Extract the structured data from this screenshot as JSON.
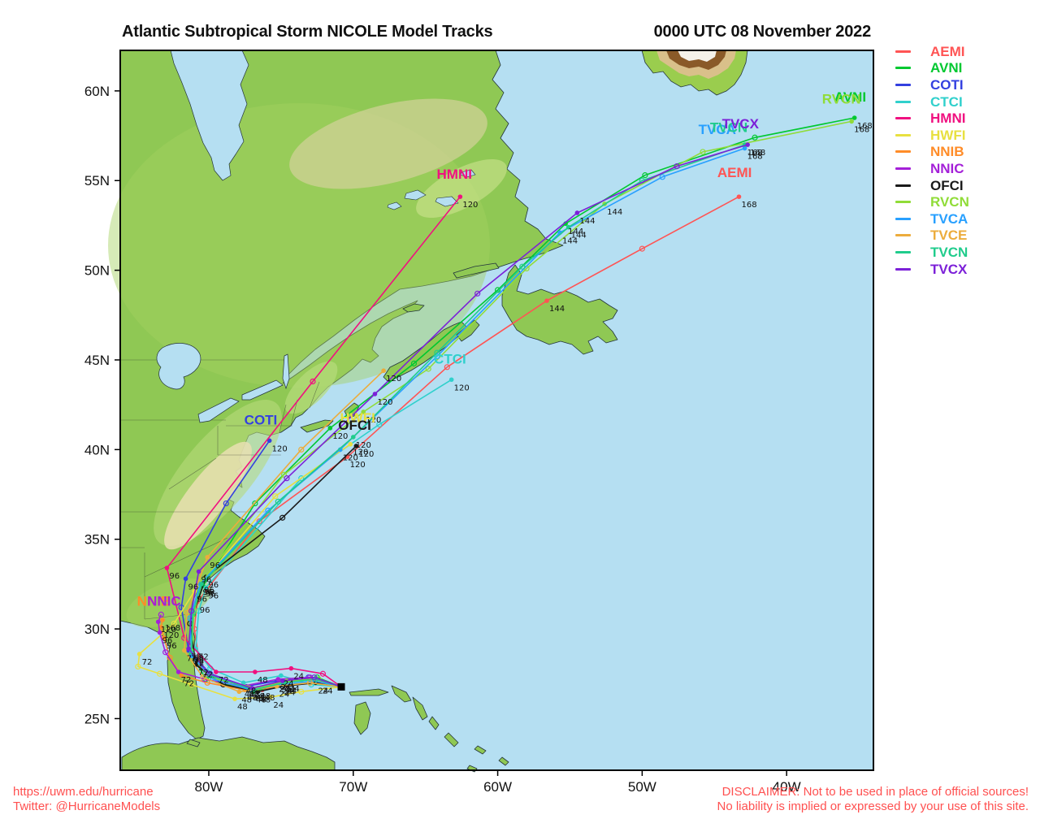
{
  "page": {
    "title_left": "Atlantic Subtropical Storm NICOLE Model Tracks",
    "title_right": "0000 UTC 08 November 2022"
  },
  "footer": {
    "url": "https://uwm.edu/hurricane",
    "twitter": "Twitter: @HurricaneModels",
    "disclaimer_line1": "DISCLAIMER: Not to be used in place of official sources!",
    "disclaimer_line2": "No liability is implied or expressed by your use of this site."
  },
  "legend": {
    "models": [
      {
        "name": "AEMI",
        "color": "#FF5454"
      },
      {
        "name": "AVNI",
        "color": "#00C830"
      },
      {
        "name": "COTI",
        "color": "#3340E0"
      },
      {
        "name": "CTCI",
        "color": "#30D0CC"
      },
      {
        "name": "HMNI",
        "color": "#F01080"
      },
      {
        "name": "HWFI",
        "color": "#E8E040"
      },
      {
        "name": "NNIB",
        "color": "#FF8C28"
      },
      {
        "name": "NNIC",
        "color": "#A420D8"
      },
      {
        "name": "OFCI",
        "color": "#1A1A1A"
      },
      {
        "name": "RVCN",
        "color": "#90DC38"
      },
      {
        "name": "TVCA",
        "color": "#28A0FF"
      },
      {
        "name": "TVCE",
        "color": "#ECAC3C"
      },
      {
        "name": "TVCN",
        "color": "#20CC8C"
      },
      {
        "name": "TVCX",
        "color": "#7C20D8"
      }
    ]
  },
  "chart_data": {
    "type": "map-tracks",
    "storm": "NICOLE",
    "title": "Atlantic Subtropical Storm NICOLE Model Tracks",
    "init_time": "0000 UTC 08 November 2022",
    "bounds": {
      "lon_min": -86.13,
      "lon_max": -33.99,
      "lat_min": 22.12,
      "lat_max": 62.26
    },
    "lon_ticks": [
      {
        "value": -80,
        "label": "80W"
      },
      {
        "value": -70,
        "label": "70W"
      },
      {
        "value": -60,
        "label": "60W"
      },
      {
        "value": -50,
        "label": "50W"
      },
      {
        "value": -40,
        "label": "40W"
      }
    ],
    "lat_ticks": [
      {
        "value": 25,
        "label": "25N"
      },
      {
        "value": 30,
        "label": "30N"
      },
      {
        "value": 35,
        "label": "35N"
      },
      {
        "value": 40,
        "label": "40N"
      },
      {
        "value": 45,
        "label": "45N"
      },
      {
        "value": 50,
        "label": "50N"
      },
      {
        "value": 55,
        "label": "55N"
      },
      {
        "value": 60,
        "label": "60N"
      }
    ],
    "start": {
      "lon": -70.83,
      "lat": 26.77
    },
    "tracks": [
      {
        "model": "AEMI",
        "color": "#FF5454",
        "end_label": {
          "lon": -43.6,
          "lat": 55.2
        },
        "points": [
          [
            -70.83,
            26.77,
            ""
          ],
          [
            -72.3,
            27.0,
            "24"
          ],
          [
            -74.6,
            26.9,
            ""
          ],
          [
            -76.3,
            26.6,
            "48"
          ],
          [
            -78.6,
            26.9,
            ""
          ],
          [
            -80.6,
            27.9,
            "72"
          ],
          [
            -81.0,
            30.0,
            ""
          ],
          [
            -80.8,
            31.5,
            "96"
          ],
          [
            -76.5,
            36.0,
            ""
          ],
          [
            -70.4,
            39.6,
            "120"
          ],
          [
            -63.5,
            44.6,
            ""
          ],
          [
            -56.6,
            48.3,
            "144"
          ],
          [
            -50.0,
            51.2,
            ""
          ],
          [
            -43.3,
            54.1,
            "168"
          ]
        ]
      },
      {
        "model": "AVNI",
        "color": "#00C830",
        "end_label": {
          "lon": -35.6,
          "lat": 59.4
        },
        "points": [
          [
            -70.83,
            26.77,
            ""
          ],
          [
            -72.5,
            27.3,
            ""
          ],
          [
            -74.8,
            27.0,
            "24"
          ],
          [
            -76.9,
            26.5,
            "48"
          ],
          [
            -80.2,
            27.2,
            ""
          ],
          [
            -81.2,
            28.6,
            "72"
          ],
          [
            -81.1,
            30.8,
            ""
          ],
          [
            -80.4,
            32.4,
            "96"
          ],
          [
            -76.8,
            37.0,
            ""
          ],
          [
            -71.6,
            41.2,
            "120"
          ],
          [
            -65.8,
            44.8,
            ""
          ],
          [
            -60.0,
            48.9,
            ""
          ],
          [
            -55.3,
            52.6,
            "144"
          ],
          [
            -49.8,
            55.3,
            ""
          ],
          [
            -42.2,
            57.4,
            ""
          ],
          [
            -35.3,
            58.5,
            "168"
          ]
        ]
      },
      {
        "model": "COTI",
        "color": "#3340E0",
        "end_label": {
          "lon": -76.4,
          "lat": 41.4
        },
        "points": [
          [
            -70.83,
            26.77,
            ""
          ],
          [
            -73.1,
            27.3,
            ""
          ],
          [
            -75.3,
            27.1,
            "24"
          ],
          [
            -77.4,
            26.8,
            "48"
          ],
          [
            -79.9,
            27.5,
            ""
          ],
          [
            -81.4,
            28.8,
            "72"
          ],
          [
            -81.9,
            31.2,
            ""
          ],
          [
            -81.6,
            32.8,
            "96"
          ],
          [
            -78.8,
            37.0,
            ""
          ],
          [
            -75.8,
            40.5,
            "120"
          ]
        ]
      },
      {
        "model": "CTCI",
        "color": "#30D0CC",
        "end_label": {
          "lon": -63.3,
          "lat": 44.8
        },
        "points": [
          [
            -70.83,
            26.77,
            ""
          ],
          [
            -72.9,
            26.9,
            ""
          ],
          [
            -75.0,
            27.4,
            "24"
          ],
          [
            -77.6,
            27.0,
            "48"
          ],
          [
            -79.9,
            27.8,
            ""
          ],
          [
            -80.9,
            28.9,
            "72"
          ],
          [
            -80.7,
            31.0,
            ""
          ],
          [
            -80.2,
            32.3,
            "96"
          ],
          [
            -73.6,
            38.4,
            ""
          ],
          [
            -68.2,
            41.4,
            ""
          ],
          [
            -63.2,
            43.9,
            "120"
          ]
        ]
      },
      {
        "model": "HMNI",
        "color": "#F01080",
        "end_label": {
          "lon": -63.0,
          "lat": 55.1
        },
        "points": [
          [
            -70.83,
            26.77,
            ""
          ],
          [
            -72.1,
            27.5,
            ""
          ],
          [
            -74.3,
            27.8,
            "24"
          ],
          [
            -76.8,
            27.6,
            "48"
          ],
          [
            -79.5,
            27.6,
            "72"
          ],
          [
            -81.7,
            29.5,
            ""
          ],
          [
            -82.9,
            33.4,
            "96"
          ],
          [
            -72.8,
            43.8,
            ""
          ],
          [
            -62.6,
            54.1,
            "120"
          ]
        ]
      },
      {
        "model": "HWFI",
        "color": "#E8E040",
        "end_label": {
          "lon": -69.7,
          "lat": 41.5
        },
        "points": [
          [
            -70.83,
            26.77,
            ""
          ],
          [
            -73.6,
            26.5,
            ""
          ],
          [
            -75.7,
            26.2,
            "24"
          ],
          [
            -78.2,
            26.1,
            "48"
          ],
          [
            -81.2,
            26.9,
            ""
          ],
          [
            -83.4,
            27.5,
            ""
          ],
          [
            -84.9,
            27.9,
            ""
          ],
          [
            -84.8,
            28.6,
            "72"
          ],
          [
            -82.4,
            30.3,
            ""
          ],
          [
            -81.0,
            32.1,
            "96"
          ],
          [
            -75.4,
            37.4,
            ""
          ],
          [
            -70.2,
            40.3,
            "120"
          ]
        ]
      },
      {
        "model": "NNIB",
        "color": "#FF8C28",
        "end_label": {
          "lon": -83.8,
          "lat": 31.3
        },
        "points": [
          [
            -70.83,
            26.77,
            ""
          ],
          [
            -72.9,
            27.2,
            ""
          ],
          [
            -75.1,
            27.0,
            "24"
          ],
          [
            -77.5,
            26.6,
            "48"
          ],
          [
            -80.1,
            27.0,
            ""
          ],
          [
            -81.9,
            27.4,
            "72"
          ],
          [
            -82.7,
            28.4,
            ""
          ],
          [
            -83.1,
            29.5,
            "96"
          ],
          [
            -83.3,
            30.1,
            "120"
          ],
          [
            -83.2,
            30.5,
            "168"
          ]
        ]
      },
      {
        "model": "NNIC",
        "color": "#A420D8",
        "end_label": {
          "lon": -83.1,
          "lat": 31.3
        },
        "points": [
          [
            -70.83,
            26.77,
            ""
          ],
          [
            -73.0,
            27.3,
            ""
          ],
          [
            -75.2,
            27.2,
            "24"
          ],
          [
            -77.7,
            26.8,
            "48"
          ],
          [
            -80.3,
            27.2,
            ""
          ],
          [
            -82.1,
            27.6,
            "72"
          ],
          [
            -83.0,
            28.7,
            ""
          ],
          [
            -83.4,
            29.8,
            "96"
          ],
          [
            -83.5,
            30.4,
            "120"
          ],
          [
            -83.3,
            30.8,
            ""
          ]
        ]
      },
      {
        "model": "OFCI",
        "color": "#1A1A1A",
        "end_label": {
          "lon": -69.9,
          "lat": 41.1
        },
        "points": [
          [
            -70.83,
            26.77,
            ""
          ],
          [
            -72.6,
            27.0,
            "24"
          ],
          [
            -74.9,
            26.8,
            ""
          ],
          [
            -76.6,
            26.5,
            "48"
          ],
          [
            -79.0,
            26.9,
            ""
          ],
          [
            -80.9,
            28.0,
            "72"
          ],
          [
            -81.3,
            30.3,
            ""
          ],
          [
            -80.2,
            32.9,
            "96"
          ],
          [
            -74.9,
            36.2,
            ""
          ],
          [
            -69.8,
            40.2,
            "120"
          ]
        ]
      },
      {
        "model": "RVCN",
        "color": "#90DC38",
        "end_label": {
          "lon": -36.2,
          "lat": 59.3
        },
        "points": [
          [
            -70.83,
            26.77,
            ""
          ],
          [
            -72.4,
            27.2,
            ""
          ],
          [
            -74.6,
            27.1,
            "24"
          ],
          [
            -76.6,
            26.7,
            "48"
          ],
          [
            -80.0,
            27.3,
            ""
          ],
          [
            -81.2,
            28.8,
            "72"
          ],
          [
            -81.0,
            31.0,
            ""
          ],
          [
            -80.5,
            32.6,
            "96"
          ],
          [
            -74.8,
            38.6,
            ""
          ],
          [
            -69.3,
            42.1,
            "120"
          ],
          [
            -64.8,
            44.5,
            ""
          ],
          [
            -58.0,
            50.1,
            ""
          ],
          [
            -52.6,
            53.7,
            "144"
          ],
          [
            -45.8,
            56.6,
            ""
          ],
          [
            -35.5,
            58.3,
            "168"
          ]
        ]
      },
      {
        "model": "TVCA",
        "color": "#28A0FF",
        "end_label": {
          "lon": -44.8,
          "lat": 57.6
        },
        "points": [
          [
            -70.83,
            26.77,
            ""
          ],
          [
            -72.7,
            27.1,
            ""
          ],
          [
            -74.9,
            26.9,
            "24"
          ],
          [
            -77.1,
            26.6,
            "48"
          ],
          [
            -79.7,
            27.2,
            ""
          ],
          [
            -81.2,
            28.5,
            "72"
          ],
          [
            -81.3,
            30.6,
            ""
          ],
          [
            -80.6,
            32.5,
            "96"
          ],
          [
            -75.9,
            36.6,
            ""
          ],
          [
            -70.9,
            40.0,
            "120"
          ],
          [
            -64.2,
            45.2,
            ""
          ],
          [
            -55.7,
            52.1,
            "144"
          ],
          [
            -48.6,
            55.2,
            ""
          ],
          [
            -42.9,
            56.8,
            "168"
          ]
        ]
      },
      {
        "model": "TVCE",
        "color": "#ECAC3C",
        "end_label": null,
        "points": [
          [
            -70.83,
            26.77,
            ""
          ],
          [
            -73.0,
            27.0,
            ""
          ],
          [
            -75.3,
            26.8,
            "24"
          ],
          [
            -77.9,
            26.5,
            "48"
          ],
          [
            -80.4,
            27.3,
            ""
          ],
          [
            -81.7,
            28.8,
            "72"
          ],
          [
            -81.5,
            30.9,
            ""
          ],
          [
            -80.1,
            34.0,
            "96"
          ],
          [
            -73.6,
            40.0,
            ""
          ],
          [
            -67.9,
            44.4,
            "120"
          ]
        ]
      },
      {
        "model": "TVCN",
        "color": "#20CC8C",
        "end_label": {
          "lon": -44.0,
          "lat": 57.7
        },
        "points": [
          [
            -70.83,
            26.77,
            ""
          ],
          [
            -72.6,
            27.2,
            ""
          ],
          [
            -74.8,
            27.0,
            "24"
          ],
          [
            -76.9,
            26.6,
            "48"
          ],
          [
            -79.9,
            27.4,
            ""
          ],
          [
            -81.2,
            28.7,
            "72"
          ],
          [
            -81.1,
            30.9,
            ""
          ],
          [
            -80.5,
            32.5,
            "96"
          ],
          [
            -75.2,
            37.1,
            ""
          ],
          [
            -70.0,
            40.7,
            "120"
          ],
          [
            -64.2,
            45.4,
            ""
          ],
          [
            -58.3,
            50.2,
            ""
          ],
          [
            -55.1,
            52.4,
            "144"
          ],
          [
            -50.0,
            55.0,
            ""
          ],
          [
            -42.9,
            57.0,
            "168"
          ]
        ]
      },
      {
        "model": "TVCX",
        "color": "#7C20D8",
        "end_label": {
          "lon": -43.2,
          "lat": 57.9
        },
        "points": [
          [
            -70.83,
            26.77,
            ""
          ],
          [
            -72.7,
            27.3,
            ""
          ],
          [
            -74.9,
            27.1,
            "24"
          ],
          [
            -77.0,
            26.7,
            "48"
          ],
          [
            -80.0,
            27.5,
            ""
          ],
          [
            -81.4,
            28.9,
            "72"
          ],
          [
            -81.2,
            31.0,
            ""
          ],
          [
            -80.7,
            33.2,
            "96"
          ],
          [
            -74.6,
            38.4,
            ""
          ],
          [
            -68.5,
            43.1,
            "120"
          ],
          [
            -61.4,
            48.7,
            ""
          ],
          [
            -54.5,
            53.2,
            "144"
          ],
          [
            -47.6,
            55.8,
            ""
          ],
          [
            -42.7,
            57.0,
            "168"
          ]
        ]
      }
    ]
  }
}
